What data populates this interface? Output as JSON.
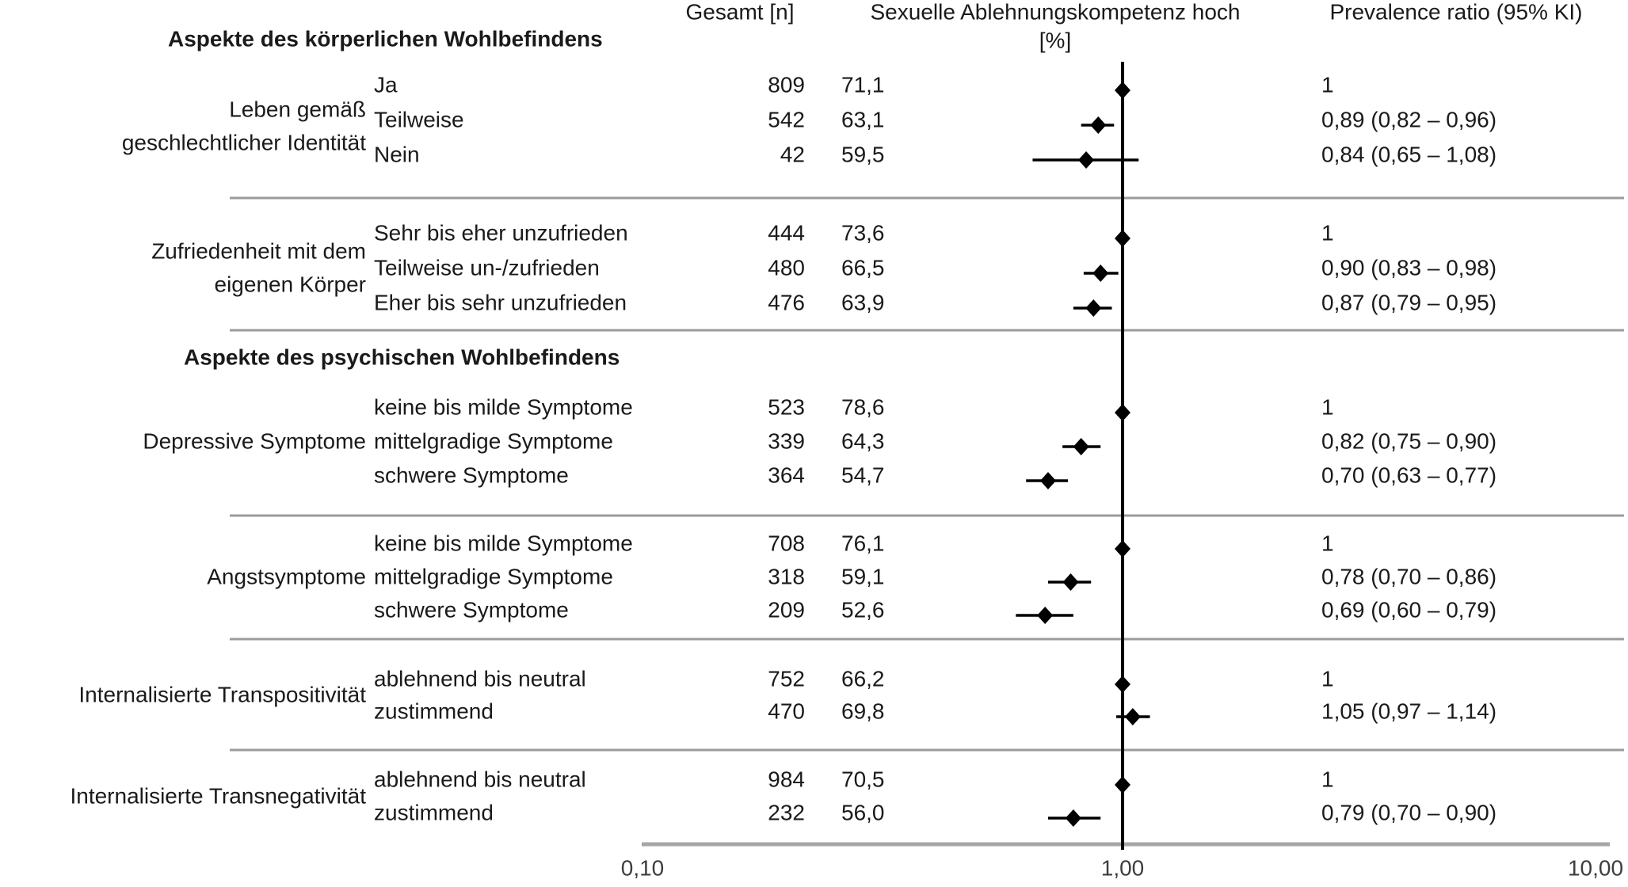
{
  "colors": {
    "text": "#1a1a1a",
    "separator": "#9b9b9b",
    "axis_line": "#a6a6a6",
    "marker": "#000000",
    "reference_line": "#000000"
  },
  "chart_data": {
    "type": "forest",
    "x_axis": {
      "scale": "log",
      "min": 0.1,
      "max": 10,
      "reference_value": 1,
      "ticks": [
        {
          "label": "0,10",
          "value": 0.1
        },
        {
          "label": "1,00",
          "value": 1
        },
        {
          "label": "10,00",
          "value": 10
        }
      ]
    },
    "column_headers": {
      "total": "Gesamt [n]",
      "outcome": "Sexuelle Ablehnungskompetenz hoch",
      "outcome_unit": "[%]",
      "ratio": "Prevalence ratio (95% KI)"
    },
    "sections": [
      {
        "title": "Aspekte des körperlichen Wohlbefindens",
        "groups": [
          {
            "label": "Leben gemäß geschlechtlicher Identität",
            "label_lines": [
              "Leben gemäß",
              "geschlechtlicher Identität"
            ],
            "rows": [
              {
                "category": "Ja",
                "n": "809",
                "percent": "71,1",
                "pr_label": "1",
                "pr": 1,
                "ci_low": null,
                "ci_high": null,
                "reference": true
              },
              {
                "category": "Teilweise",
                "n": "542",
                "percent": "63,1",
                "pr_label": "0,89 (0,82 – 0,96)",
                "pr": 0.89,
                "ci_low": 0.82,
                "ci_high": 0.96,
                "reference": false
              },
              {
                "category": "Nein",
                "n": "42",
                "percent": "59,5",
                "pr_label": "0,84 (0,65 – 1,08)",
                "pr": 0.84,
                "ci_low": 0.65,
                "ci_high": 1.08,
                "reference": false
              }
            ]
          },
          {
            "label": "Zufriedenheit mit dem eigenen Körper",
            "label_lines": [
              "Zufriedenheit mit dem",
              "eigenen Körper"
            ],
            "rows": [
              {
                "category": "Sehr bis eher unzufrieden",
                "n": "444",
                "percent": "73,6",
                "pr_label": "1",
                "pr": 1,
                "ci_low": null,
                "ci_high": null,
                "reference": true
              },
              {
                "category": "Teilweise un-/zufrieden",
                "n": "480",
                "percent": "66,5",
                "pr_label": "0,90 (0,83 – 0,98)",
                "pr": 0.9,
                "ci_low": 0.83,
                "ci_high": 0.98,
                "reference": false
              },
              {
                "category": "Eher bis sehr unzufrieden",
                "n": "476",
                "percent": "63,9",
                "pr_label": "0,87 (0,79 – 0,95)",
                "pr": 0.87,
                "ci_low": 0.79,
                "ci_high": 0.95,
                "reference": false
              }
            ]
          }
        ]
      },
      {
        "title": "Aspekte des psychischen Wohlbefindens",
        "groups": [
          {
            "label": "Depressive Symptome",
            "label_lines": [
              "Depressive Symptome"
            ],
            "rows": [
              {
                "category": "keine bis milde Symptome",
                "n": "523",
                "percent": "78,6",
                "pr_label": "1",
                "pr": 1,
                "ci_low": null,
                "ci_high": null,
                "reference": true
              },
              {
                "category": "mittelgradige Symptome",
                "n": "339",
                "percent": "64,3",
                "pr_label": "0,82 (0,75 – 0,90)",
                "pr": 0.82,
                "ci_low": 0.75,
                "ci_high": 0.9,
                "reference": false
              },
              {
                "category": "schwere Symptome",
                "n": "364",
                "percent": "54,7",
                "pr_label": "0,70 (0,63 – 0,77)",
                "pr": 0.7,
                "ci_low": 0.63,
                "ci_high": 0.77,
                "reference": false
              }
            ]
          },
          {
            "label": "Angstsymptome",
            "label_lines": [
              "Angstsymptome"
            ],
            "rows": [
              {
                "category": "keine bis milde Symptome",
                "n": "708",
                "percent": "76,1",
                "pr_label": "1",
                "pr": 1,
                "ci_low": null,
                "ci_high": null,
                "reference": true
              },
              {
                "category": "mittelgradige Symptome",
                "n": "318",
                "percent": "59,1",
                "pr_label": "0,78 (0,70 – 0,86)",
                "pr": 0.78,
                "ci_low": 0.7,
                "ci_high": 0.86,
                "reference": false
              },
              {
                "category": "schwere Symptome",
                "n": "209",
                "percent": "52,6",
                "pr_label": "0,69 (0,60 – 0,79)",
                "pr": 0.69,
                "ci_low": 0.6,
                "ci_high": 0.79,
                "reference": false
              }
            ]
          },
          {
            "label": "Internalisierte Transpositivität",
            "label_lines": [
              "Internalisierte Transpositivität"
            ],
            "rows": [
              {
                "category": "ablehnend bis neutral",
                "n": "752",
                "percent": "66,2",
                "pr_label": "1",
                "pr": 1,
                "ci_low": null,
                "ci_high": null,
                "reference": true
              },
              {
                "category": "zustimmend",
                "n": "470",
                "percent": "69,8",
                "pr_label": "1,05 (0,97 – 1,14)",
                "pr": 1.05,
                "ci_low": 0.97,
                "ci_high": 1.14,
                "reference": false
              }
            ]
          },
          {
            "label": "Internalisierte Transnegativität",
            "label_lines": [
              "Internalisierte Transnegativität"
            ],
            "rows": [
              {
                "category": "ablehnend bis neutral",
                "n": "984",
                "percent": "70,5",
                "pr_label": "1",
                "pr": 1,
                "ci_low": null,
                "ci_high": null,
                "reference": true
              },
              {
                "category": "zustimmend",
                "n": "232",
                "percent": "56,0",
                "pr_label": "0,79 (0,70 – 0,90)",
                "pr": 0.79,
                "ci_low": 0.7,
                "ci_high": 0.9,
                "reference": false
              }
            ]
          }
        ]
      }
    ]
  }
}
